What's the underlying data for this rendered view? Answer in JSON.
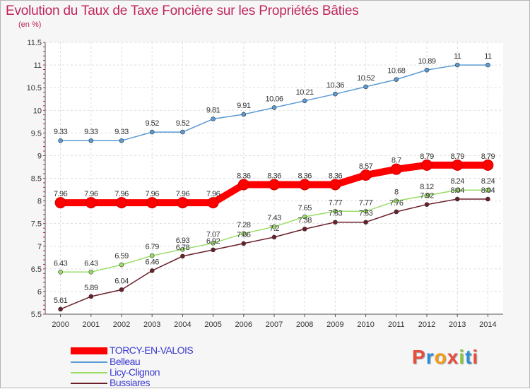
{
  "title": "Evolution du Taux de Taxe Foncière sur les Propriétés Bâties",
  "unit": "(en %)",
  "logo": {
    "text": "Proxiti",
    "colors": [
      "#e84c3d",
      "#2b8fd6",
      "#f39c12",
      "#e84c3d",
      "#8cc63f",
      "#2b8fd6",
      "#e84c3d"
    ]
  },
  "chart_data": {
    "type": "line",
    "x": [
      "2000",
      "2001",
      "2002",
      "2003",
      "2004",
      "2005",
      "2006",
      "2007",
      "2008",
      "2009",
      "2010",
      "2011",
      "2012",
      "2013",
      "2014"
    ],
    "ylim": [
      5.5,
      11.5
    ],
    "yticks": [
      "5.5",
      "6",
      "6.5",
      "7",
      "7.5",
      "8",
      "8.5",
      "9",
      "9.5",
      "10",
      "10.5",
      "11",
      "11.5"
    ],
    "grid": true,
    "legend_position": "bottom-left",
    "series": [
      {
        "name": "TORCY-EN-VALOIS",
        "color": "#ff0000",
        "values": [
          7.96,
          7.96,
          7.96,
          7.96,
          7.96,
          7.96,
          8.36,
          8.36,
          8.36,
          8.36,
          8.57,
          8.7,
          8.79,
          8.79,
          8.79
        ],
        "labels": [
          "7.96",
          "7.96",
          "7.96",
          "7.96",
          "7.96",
          "7.96",
          "8.36",
          "8.36",
          "8.36",
          "8.36",
          "8.57",
          "8.7",
          "8.79",
          "8.79",
          "8.79"
        ]
      },
      {
        "name": "Belleau",
        "color": "#5b9bd5",
        "values": [
          9.33,
          9.33,
          9.33,
          9.52,
          9.52,
          9.81,
          9.91,
          10.06,
          10.21,
          10.36,
          10.52,
          10.68,
          10.89,
          11,
          11
        ],
        "labels": [
          "9.33",
          "9.33",
          "9.33",
          "9.52",
          "9.52",
          "9.81",
          "9.91",
          "10.06",
          "10.21",
          "10.36",
          "10.52",
          "10.68",
          "10.89",
          "11",
          "11"
        ]
      },
      {
        "name": "Licy-Clignon",
        "color": "#99dd66",
        "values": [
          6.43,
          6.43,
          6.59,
          6.79,
          6.93,
          7.07,
          7.28,
          7.43,
          7.65,
          7.77,
          7.77,
          8,
          8.12,
          8.24,
          8.24
        ],
        "labels": [
          "6.43",
          "6.43",
          "6.59",
          "6.79",
          "6.93",
          "7.07",
          "7.28",
          "7.43",
          "7.65",
          "7.77",
          "7.77",
          "8",
          "8.12",
          "8.24",
          "8.24"
        ]
      },
      {
        "name": "Bussiares",
        "color": "#6b1f2a",
        "values": [
          5.61,
          5.89,
          6.04,
          6.46,
          6.78,
          6.92,
          7.06,
          7.2,
          7.38,
          7.53,
          7.53,
          7.76,
          7.92,
          8.04,
          8.04
        ],
        "labels": [
          "5.61",
          "5.89",
          "6.04",
          "6.46",
          "6.78",
          "6.92",
          "7.06",
          "7.2",
          "7.38",
          "7.53",
          "7.53",
          "7.76",
          "7.92",
          "8.04",
          "8.04"
        ]
      }
    ]
  }
}
